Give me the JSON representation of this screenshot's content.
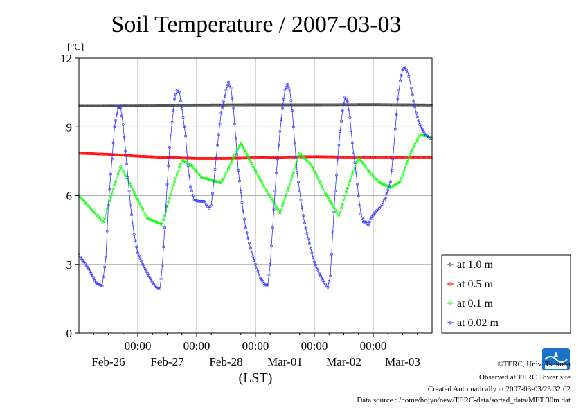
{
  "chart_data": {
    "type": "line",
    "title": "Soil Temperature / 2007-03-03",
    "ylabel": "[°C]",
    "xlabel": "(LST)",
    "ylim": [
      0,
      12
    ],
    "yticks": [
      "0",
      "3",
      "6",
      "9",
      "12"
    ],
    "xlim_hours": [
      0,
      144
    ],
    "time_ticks": [
      "00:00",
      "00:00",
      "00:00",
      "00:00",
      "00:00"
    ],
    "date_labels": [
      "Feb-26",
      "Feb-27",
      "Feb-28",
      "Mar-01",
      "Mar-02",
      "Mar-03"
    ],
    "grid": true,
    "legend_position": "right",
    "series": [
      {
        "name": "at 1.0 m",
        "color": "#444444",
        "points": [
          [
            0,
            9.93
          ],
          [
            24,
            9.94
          ],
          [
            48,
            9.95
          ],
          [
            72,
            9.96
          ],
          [
            96,
            9.96
          ],
          [
            120,
            9.97
          ],
          [
            144,
            9.95
          ]
        ]
      },
      {
        "name": "at 0.5 m",
        "color": "#ff0000",
        "points": [
          [
            0,
            7.85
          ],
          [
            12,
            7.8
          ],
          [
            24,
            7.72
          ],
          [
            36,
            7.66
          ],
          [
            48,
            7.62
          ],
          [
            60,
            7.62
          ],
          [
            72,
            7.65
          ],
          [
            84,
            7.68
          ],
          [
            96,
            7.7
          ],
          [
            108,
            7.68
          ],
          [
            120,
            7.68
          ],
          [
            132,
            7.68
          ],
          [
            144,
            7.68
          ]
        ]
      },
      {
        "name": "at 0.1 m",
        "color": "#00ff00",
        "points": [
          [
            0,
            6.0
          ],
          [
            6,
            5.3
          ],
          [
            10,
            4.85
          ],
          [
            14,
            6.3
          ],
          [
            17,
            7.25
          ],
          [
            20,
            6.7
          ],
          [
            24,
            5.8
          ],
          [
            28,
            5.0
          ],
          [
            34,
            4.75
          ],
          [
            38,
            6.3
          ],
          [
            42,
            7.55
          ],
          [
            46,
            7.3
          ],
          [
            50,
            6.8
          ],
          [
            58,
            6.55
          ],
          [
            62,
            7.4
          ],
          [
            66,
            8.3
          ],
          [
            70,
            7.5
          ],
          [
            76,
            6.3
          ],
          [
            82,
            5.25
          ],
          [
            86,
            6.5
          ],
          [
            90,
            7.85
          ],
          [
            95,
            7.3
          ],
          [
            100,
            6.2
          ],
          [
            106,
            5.1
          ],
          [
            110,
            6.5
          ],
          [
            114,
            7.65
          ],
          [
            118,
            7.1
          ],
          [
            122,
            6.6
          ],
          [
            127,
            6.35
          ],
          [
            131,
            6.6
          ],
          [
            135,
            7.8
          ],
          [
            139,
            8.65
          ],
          [
            142,
            8.6
          ],
          [
            144,
            8.5
          ]
        ]
      },
      {
        "name": "at 0.02 m",
        "color": "#3030ff",
        "points": [
          [
            0,
            3.4
          ],
          [
            4,
            2.8
          ],
          [
            7,
            2.2
          ],
          [
            9.5,
            2.05
          ],
          [
            11,
            3.3
          ],
          [
            12,
            5.6
          ],
          [
            13.5,
            7.6
          ],
          [
            14.5,
            9.0
          ],
          [
            16,
            9.85
          ],
          [
            17,
            9.85
          ],
          [
            18,
            9.1
          ],
          [
            19.5,
            7.4
          ],
          [
            21,
            5.6
          ],
          [
            22.5,
            4.3
          ],
          [
            24,
            3.5
          ],
          [
            26,
            3.0
          ],
          [
            28,
            2.6
          ],
          [
            30,
            2.2
          ],
          [
            32,
            1.95
          ],
          [
            33,
            1.95
          ],
          [
            33.8,
            2.6
          ],
          [
            35,
            4.6
          ],
          [
            36,
            6.5
          ],
          [
            37,
            8.1
          ],
          [
            38,
            9.2
          ],
          [
            39,
            10.2
          ],
          [
            40,
            10.6
          ],
          [
            41,
            10.5
          ],
          [
            42,
            9.8
          ],
          [
            43.5,
            8.6
          ],
          [
            44.5,
            7.3
          ],
          [
            45.5,
            6.4
          ],
          [
            47,
            5.8
          ],
          [
            49,
            5.75
          ],
          [
            51,
            5.75
          ],
          [
            53,
            5.45
          ],
          [
            54,
            5.6
          ],
          [
            55,
            6.6
          ],
          [
            56.5,
            8.2
          ],
          [
            58,
            9.6
          ],
          [
            60,
            10.6
          ],
          [
            61,
            10.95
          ],
          [
            62,
            10.7
          ],
          [
            63,
            9.8
          ],
          [
            64,
            8.5
          ],
          [
            65,
            7.1
          ],
          [
            66.5,
            5.7
          ],
          [
            68,
            4.6
          ],
          [
            70,
            3.7
          ],
          [
            72,
            3.0
          ],
          [
            74,
            2.4
          ],
          [
            76,
            2.1
          ],
          [
            77,
            2.1
          ],
          [
            78,
            3.0
          ],
          [
            79,
            4.6
          ],
          [
            80.5,
            7.0
          ],
          [
            82,
            8.8
          ],
          [
            83,
            9.8
          ],
          [
            84,
            10.6
          ],
          [
            85,
            10.85
          ],
          [
            86,
            10.6
          ],
          [
            87,
            9.7
          ],
          [
            88,
            8.3
          ],
          [
            89,
            7.0
          ],
          [
            90.5,
            5.8
          ],
          [
            92,
            4.8
          ],
          [
            94,
            3.9
          ],
          [
            96,
            3.1
          ],
          [
            98,
            2.6
          ],
          [
            100,
            2.2
          ],
          [
            101.5,
            2.0
          ],
          [
            102.5,
            2.5
          ],
          [
            103.5,
            4.4
          ],
          [
            104.5,
            6.2
          ],
          [
            105.5,
            7.6
          ],
          [
            106.5,
            8.8
          ],
          [
            107.5,
            9.7
          ],
          [
            108.5,
            10.3
          ],
          [
            109.5,
            10.1
          ],
          [
            110.5,
            9.4
          ],
          [
            111.5,
            8.3
          ],
          [
            113,
            7.0
          ],
          [
            114,
            6.0
          ],
          [
            115,
            5.2
          ],
          [
            116,
            4.85
          ],
          [
            117,
            4.85
          ],
          [
            118,
            4.7
          ],
          [
            119,
            5.0
          ],
          [
            121,
            5.3
          ],
          [
            123,
            5.5
          ],
          [
            125,
            5.9
          ],
          [
            127,
            6.6
          ],
          [
            128,
            7.6
          ],
          [
            129,
            8.9
          ],
          [
            130,
            10.2
          ],
          [
            131,
            11.0
          ],
          [
            132,
            11.5
          ],
          [
            133,
            11.6
          ],
          [
            134,
            11.4
          ],
          [
            135,
            11.0
          ],
          [
            136,
            10.4
          ],
          [
            137.5,
            9.6
          ],
          [
            139,
            9.1
          ],
          [
            141,
            8.7
          ],
          [
            143,
            8.5
          ]
        ]
      }
    ]
  },
  "footer": {
    "copyright": "©TERC, Univ. Tsukuba",
    "observed": "Observed at TERC Tower site",
    "created": "Created Automatically at 2007-03-03/23:32:02",
    "source": "Data source : /home/hojyo/new/TERC-data/sorted_data/MET.30m.dat"
  },
  "logo": {
    "text": "TERC",
    "color": "#1a73c8"
  }
}
